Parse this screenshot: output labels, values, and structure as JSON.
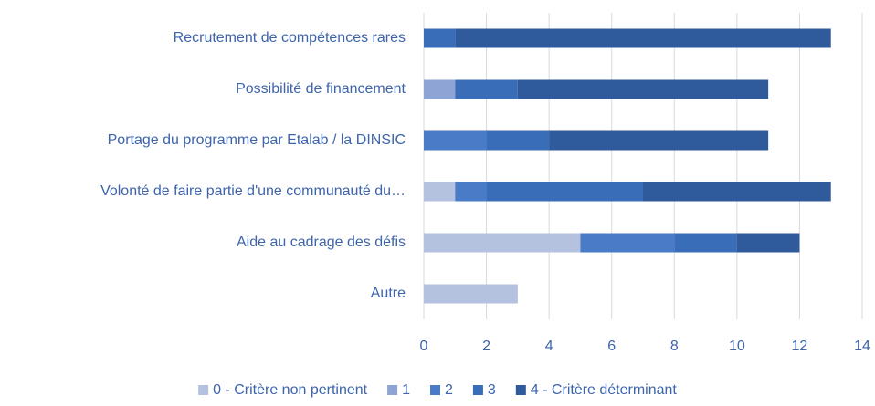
{
  "chart_data": {
    "type": "stacked_barh",
    "categories": [
      "Recrutement de compétences rares",
      "Possibilité de financement",
      "Portage du programme par Etalab / la DINSIC",
      "Volonté de faire partie d'une communauté du…",
      "Aide au cadrage des défis",
      "Autre"
    ],
    "series": [
      {
        "name": "0 - Critère non pertinent",
        "color": "#b4c2e0",
        "values": [
          0,
          0,
          0,
          1,
          5,
          3
        ]
      },
      {
        "name": "1",
        "color": "#8ea4d4",
        "values": [
          0,
          1,
          0,
          0,
          0,
          0
        ]
      },
      {
        "name": "2",
        "color": "#4a7bc6",
        "values": [
          0,
          0,
          2,
          1,
          3,
          0
        ]
      },
      {
        "name": "3",
        "color": "#3a6db8",
        "values": [
          1,
          2,
          2,
          5,
          2,
          0
        ]
      },
      {
        "name": "4 - Critère déterminant",
        "color": "#2f5a9c",
        "values": [
          12,
          8,
          7,
          6,
          2,
          0
        ]
      }
    ],
    "xlim": [
      0,
      14
    ],
    "xticks": [
      0,
      2,
      4,
      6,
      8,
      10,
      12,
      14
    ],
    "grid": true,
    "legend": "bottom"
  }
}
